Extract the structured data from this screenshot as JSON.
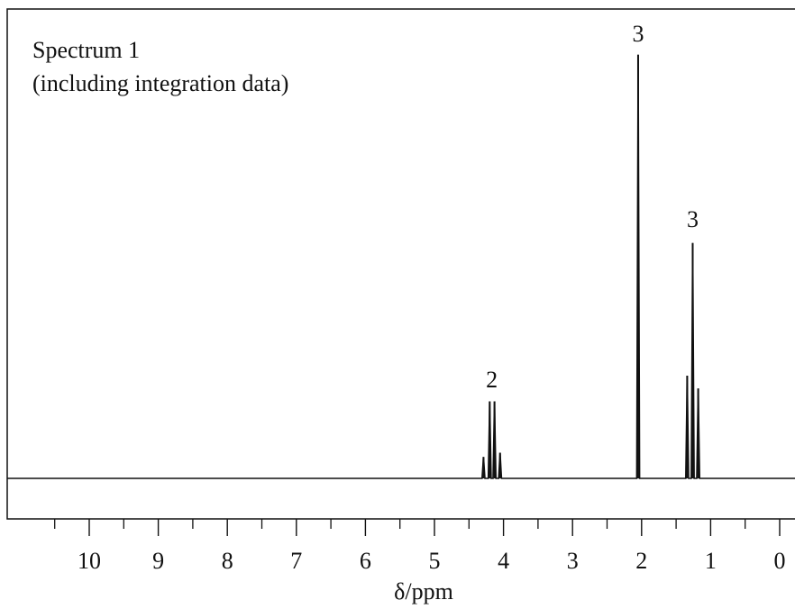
{
  "chart_data": {
    "type": "line",
    "title": "Spectrum 1",
    "subtitle": "(including integration data)",
    "xlabel": "δ/ppm",
    "ylabel": "",
    "xlim": [
      11.2,
      -0.2
    ],
    "ylim": [
      0,
      1
    ],
    "x_reversed": true,
    "grid": false,
    "major_ticks": [
      10,
      9,
      8,
      7,
      6,
      5,
      4,
      3,
      2,
      1,
      0
    ],
    "tick_labels": [
      "10",
      "9",
      "8",
      "7",
      "6",
      "5",
      "4",
      "3",
      "2",
      "1",
      "0"
    ],
    "minor_ticks": [
      10.5,
      9.5,
      8.5,
      7.5,
      6.5,
      5.5,
      4.5,
      3.5,
      2.5,
      1.5,
      0.5
    ],
    "peaks": [
      {
        "x": 4.29,
        "y": 0.05
      },
      {
        "x": 4.2,
        "y": 0.18
      },
      {
        "x": 4.13,
        "y": 0.18
      },
      {
        "x": 4.05,
        "y": 0.06
      },
      {
        "x": 2.05,
        "y": 0.99
      },
      {
        "x": 1.34,
        "y": 0.24
      },
      {
        "x": 1.26,
        "y": 0.55
      },
      {
        "x": 1.18,
        "y": 0.21
      }
    ],
    "integration_labels": [
      {
        "x": 4.17,
        "text": "2"
      },
      {
        "x": 2.05,
        "text": "3"
      },
      {
        "x": 1.26,
        "text": "3"
      }
    ],
    "line_color": "#111111"
  }
}
